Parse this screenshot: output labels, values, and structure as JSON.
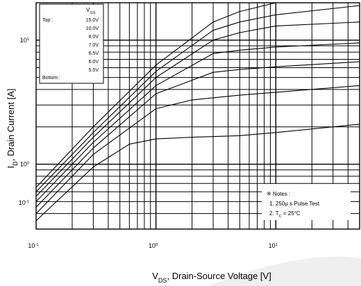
{
  "chart_data": {
    "type": "line",
    "title": "",
    "xlabel": "V_DS, Drain-Source Voltage [V]",
    "ylabel": "I_D, Drain Current [A]",
    "x_axis": {
      "scale": "log",
      "range": [
        0.1,
        50
      ],
      "ticks": [
        {
          "value": 0.1,
          "mantissa": "10",
          "exp": "-1"
        },
        {
          "value": 1,
          "mantissa": "10",
          "exp": "0"
        },
        {
          "value": 10,
          "mantissa": "10",
          "exp": "1"
        }
      ]
    },
    "y_axis": {
      "scale": "log",
      "range": [
        0.3,
        20
      ],
      "ticks": [
        {
          "value": 0.1,
          "mantissa": "10",
          "exp": "-1"
        },
        {
          "value": 1,
          "mantissa": "10",
          "exp": "0"
        },
        {
          "value": 10,
          "mantissa": "10",
          "exp": "1"
        }
      ]
    },
    "grid": true,
    "legend": {
      "placement": "top-left",
      "header": "V_GS",
      "top_label": "Top :",
      "bottom_label": "Bottom :",
      "entries": [
        "15.0V",
        "10.0V",
        "8.0V",
        "7.0V",
        "6.5V",
        "6.0V",
        "5.5V"
      ]
    },
    "notes": {
      "placement": "bottom-right",
      "title": "※ Notes :",
      "lines": [
        "1. 250μ s Pulse Test",
        "2. T_C = 25°C"
      ]
    },
    "series": [
      {
        "name": "15.0V",
        "x": [
          0.1,
          0.3,
          1,
          3,
          5,
          10,
          50
        ],
        "y": [
          0.65,
          2.0,
          6.3,
          14,
          17,
          20,
          20
        ]
      },
      {
        "name": "10.0V",
        "x": [
          0.1,
          0.3,
          1,
          3,
          5,
          10,
          50
        ],
        "y": [
          0.6,
          1.8,
          5.6,
          12,
          14,
          16,
          19
        ]
      },
      {
        "name": "8.0V",
        "x": [
          0.1,
          0.3,
          1,
          3,
          5,
          10,
          50
        ],
        "y": [
          0.55,
          1.65,
          5.0,
          10,
          11.5,
          13,
          14
        ]
      },
      {
        "name": "7.0V",
        "x": [
          0.1,
          0.3,
          1,
          3,
          5,
          10,
          50
        ],
        "y": [
          0.5,
          1.5,
          4.3,
          7.8,
          8.3,
          8.8,
          9.5
        ]
      },
      {
        "name": "6.5V",
        "x": [
          0.1,
          0.3,
          1,
          3,
          5,
          10,
          50
        ],
        "y": [
          0.45,
          1.35,
          3.7,
          5.5,
          5.8,
          6.1,
          6.7
        ]
      },
      {
        "name": "6.0V",
        "x": [
          0.1,
          0.3,
          1,
          2,
          5,
          10,
          50
        ],
        "y": [
          0.4,
          1.2,
          2.8,
          3.3,
          3.6,
          3.8,
          4.3
        ]
      },
      {
        "name": "5.5V",
        "x": [
          0.1,
          0.3,
          0.6,
          1,
          2,
          5,
          10,
          50
        ],
        "y": [
          0.35,
          0.95,
          1.45,
          1.6,
          1.65,
          1.7,
          1.8,
          2.1
        ]
      }
    ]
  }
}
